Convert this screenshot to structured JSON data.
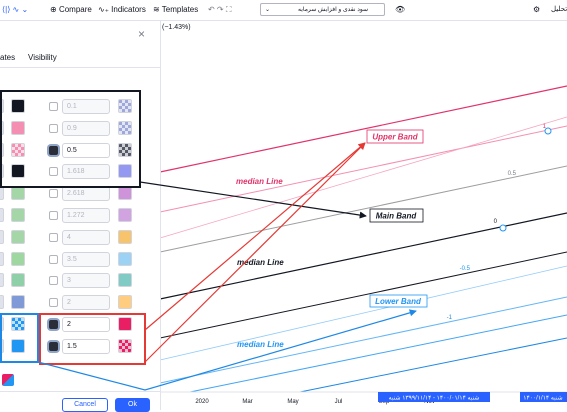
{
  "toolbar": {
    "compare": "Compare",
    "indicators": "Indicators",
    "templates": "Templates",
    "dropdown": "سود نقدی و افزایش سرمایه",
    "right_label": "تحلیل"
  },
  "chart_header": "(−1.43%)",
  "dialog": {
    "tabs": [
      "ates",
      "Visibility"
    ],
    "rows": [
      {
        "left": {
          "color": "#131722",
          "checkered": false
        },
        "checked": false,
        "value": 0.1,
        "enabled": false,
        "right": {
          "color": "#9fa8da",
          "checkered": true
        }
      },
      {
        "left": {
          "color": "#f48fb1",
          "checkered": false
        },
        "checked": false,
        "value": 0.9,
        "enabled": false,
        "right": {
          "color": "#9fa8da",
          "checkered": true
        }
      },
      {
        "left": {
          "color": "#f48fb1",
          "checkered": true
        },
        "checked": true,
        "value": 0.5,
        "enabled": true,
        "right": {
          "color": "#555a66",
          "checkered": true
        }
      },
      {
        "left": {
          "color": "#131722",
          "checkered": false
        },
        "checked": false,
        "value": 1.618,
        "enabled": false,
        "right": {
          "color": "#9598f0",
          "checkered": false
        }
      },
      {
        "left": {
          "color": "#a5d6a7",
          "checkered": false
        },
        "checked": false,
        "value": 2.618,
        "enabled": false,
        "right": {
          "color": "#ce93d8",
          "checkered": false
        }
      },
      {
        "left": {
          "color": "#a5d6a7",
          "checkered": false
        },
        "checked": false,
        "value": 1.272,
        "enabled": false,
        "right": {
          "color": "#d1a3e0",
          "checkered": false
        }
      },
      {
        "left": {
          "color": "#a5d6a7",
          "checkered": false
        },
        "checked": false,
        "value": 4,
        "enabled": false,
        "right": {
          "color": "#f7c36b",
          "checkered": false
        }
      },
      {
        "left": {
          "color": "#9ed8a0",
          "checkered": false
        },
        "checked": false,
        "value": 3.5,
        "enabled": false,
        "right": {
          "color": "#9cd3f5",
          "checkered": false
        }
      },
      {
        "left": {
          "color": "#8fd0a8",
          "checkered": false
        },
        "checked": false,
        "value": 3,
        "enabled": false,
        "right": {
          "color": "#80cbc4",
          "checkered": false
        }
      },
      {
        "left": {
          "color": "#7f9ad6",
          "checkered": false
        },
        "checked": false,
        "value": 2,
        "enabled": false,
        "right": {
          "color": "#ffcc80",
          "checkered": false
        }
      },
      {
        "left": {
          "color": "#2196f3",
          "checkered": true
        },
        "checked": true,
        "value": 2,
        "enabled": true,
        "right": {
          "color": "#e91e63",
          "checkered": false
        }
      },
      {
        "left": {
          "color": "#2196f3",
          "checkered": false
        },
        "checked": true,
        "value": 1.5,
        "enabled": true,
        "right": {
          "color": "#e91e63",
          "checkered": true
        }
      }
    ],
    "cancel": "Cancel",
    "ok": "Ok"
  },
  "annotations": {
    "upper_band": "Upper Band",
    "main_band": "Main Band",
    "lower_band": "Lower Band",
    "median_lines": [
      "median Line",
      "median Line",
      "median Line"
    ]
  },
  "levels": [
    "1",
    "0.5",
    "0",
    "-0.5",
    "-1"
  ],
  "time_axis": [
    "2020",
    "Mar",
    "May",
    "Jul",
    "Sep",
    "Nov"
  ],
  "date_labels": [
    "شنبه ۱۴۰۰/۰۱/۱۴ - ۱۳۹۹/۱۱/۱۴ شنبه",
    "شنبه ۱۴۰۰/۱/۱۴"
  ]
}
